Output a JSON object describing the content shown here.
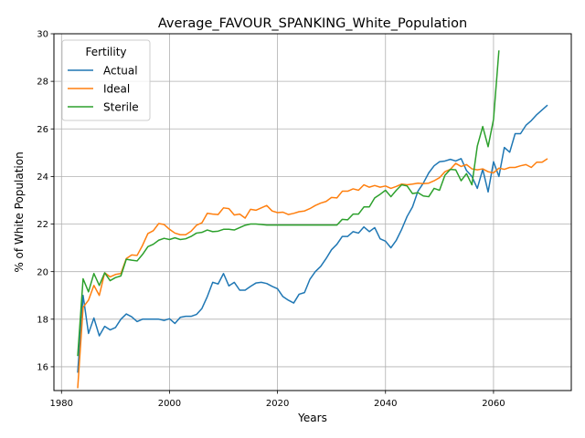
{
  "chart_data": {
    "type": "line",
    "title": "Average_FAVOUR_SPANKING_White_Population",
    "xlabel": "Years",
    "ylabel": "% of White Population",
    "xlim": [
      1978.6,
      2074.4
    ],
    "ylim": [
      15.0,
      30.0
    ],
    "xticks": [
      1980,
      2000,
      2020,
      2040,
      2060
    ],
    "yticks": [
      16,
      18,
      20,
      22,
      24,
      26,
      28,
      30
    ],
    "grid": true,
    "legend": {
      "title": "Fertility",
      "position": "upper-left"
    },
    "series": [
      {
        "name": "Actual",
        "color": "#1f77b4",
        "x": [
          1983,
          1984,
          1985,
          1986,
          1987,
          1988,
          1989,
          1990,
          1991,
          1992,
          1993,
          1994,
          1995,
          1996,
          1997,
          1998,
          1999,
          2000,
          2001,
          2002,
          2003,
          2004,
          2005,
          2006,
          2007,
          2008,
          2009,
          2010,
          2011,
          2012,
          2013,
          2014,
          2015,
          2016,
          2017,
          2018,
          2019,
          2020,
          2021,
          2022,
          2023,
          2024,
          2025,
          2026,
          2027,
          2028,
          2029,
          2030,
          2031,
          2032,
          2033,
          2034,
          2035,
          2036,
          2037,
          2038,
          2039,
          2040,
          2041,
          2042,
          2043,
          2044,
          2045,
          2046,
          2047,
          2048,
          2049,
          2050,
          2051,
          2052,
          2053,
          2054,
          2055,
          2056,
          2057,
          2058,
          2059,
          2060,
          2061,
          2062,
          2063,
          2064,
          2065,
          2066,
          2067,
          2068,
          2069,
          2070
        ],
        "y": [
          15.75,
          19.0,
          17.4,
          18.05,
          17.3,
          17.7,
          17.55,
          17.65,
          18.0,
          18.22,
          18.1,
          17.9,
          18.0,
          18.0,
          18.0,
          18.0,
          17.95,
          18.02,
          17.82,
          18.08,
          18.12,
          18.12,
          18.2,
          18.45,
          18.95,
          19.55,
          19.48,
          19.92,
          19.4,
          19.55,
          19.22,
          19.22,
          19.38,
          19.52,
          19.55,
          19.5,
          19.38,
          19.28,
          18.95,
          18.8,
          18.68,
          19.05,
          19.12,
          19.68,
          20.0,
          20.22,
          20.55,
          20.92,
          21.15,
          21.48,
          21.48,
          21.68,
          21.62,
          21.88,
          21.68,
          21.85,
          21.38,
          21.28,
          21.0,
          21.32,
          21.78,
          22.32,
          22.72,
          23.38,
          23.72,
          24.15,
          24.45,
          24.62,
          24.65,
          24.72,
          24.65,
          24.75,
          24.25,
          24.0,
          23.5,
          24.3,
          23.35,
          24.62,
          24.0,
          25.22,
          25.02,
          25.8,
          25.8,
          26.15,
          26.35,
          26.6,
          26.8,
          27.0
        ]
      },
      {
        "name": "Ideal",
        "color": "#ff7f0e",
        "x": [
          1983,
          1984,
          1985,
          1986,
          1987,
          1988,
          1989,
          1990,
          1991,
          1992,
          1993,
          1994,
          1995,
          1996,
          1997,
          1998,
          1999,
          2000,
          2001,
          2002,
          2003,
          2004,
          2005,
          2006,
          2007,
          2008,
          2009,
          2010,
          2011,
          2012,
          2013,
          2014,
          2015,
          2016,
          2017,
          2018,
          2019,
          2020,
          2021,
          2022,
          2023,
          2024,
          2025,
          2026,
          2027,
          2028,
          2029,
          2030,
          2031,
          2032,
          2033,
          2034,
          2035,
          2036,
          2037,
          2038,
          2039,
          2040,
          2041,
          2042,
          2043,
          2044,
          2045,
          2046,
          2047,
          2048,
          2049,
          2050,
          2051,
          2052,
          2053,
          2054,
          2055,
          2056,
          2057,
          2058,
          2059,
          2060,
          2061,
          2062,
          2063,
          2064,
          2065,
          2066,
          2067,
          2068,
          2069,
          2070
        ],
        "y": [
          15.1,
          18.5,
          18.8,
          19.42,
          19.0,
          19.95,
          19.78,
          19.88,
          19.92,
          20.55,
          20.7,
          20.68,
          21.1,
          21.6,
          21.72,
          22.02,
          21.98,
          21.78,
          21.62,
          21.55,
          21.55,
          21.7,
          21.95,
          22.05,
          22.45,
          22.42,
          22.4,
          22.68,
          22.65,
          22.38,
          22.42,
          22.25,
          22.62,
          22.58,
          22.68,
          22.78,
          22.55,
          22.48,
          22.5,
          22.4,
          22.45,
          22.52,
          22.55,
          22.65,
          22.78,
          22.88,
          22.95,
          23.12,
          23.1,
          23.38,
          23.38,
          23.48,
          23.42,
          23.65,
          23.55,
          23.62,
          23.55,
          23.6,
          23.5,
          23.58,
          23.68,
          23.65,
          23.68,
          23.72,
          23.7,
          23.72,
          23.82,
          23.95,
          24.2,
          24.3,
          24.55,
          24.42,
          24.5,
          24.32,
          24.28,
          24.32,
          24.2,
          24.15,
          24.35,
          24.3,
          24.38,
          24.38,
          24.45,
          24.5,
          24.38,
          24.6,
          24.6,
          24.75
        ]
      },
      {
        "name": "Sterile",
        "color": "#2ca02c",
        "x": [
          1983,
          1984,
          1985,
          1986,
          1987,
          1988,
          1989,
          1990,
          1991,
          1992,
          1993,
          1994,
          1995,
          1996,
          1997,
          1998,
          1999,
          2000,
          2001,
          2002,
          2003,
          2004,
          2005,
          2006,
          2007,
          2008,
          2009,
          2010,
          2011,
          2012,
          2013,
          2014,
          2015,
          2016,
          2017,
          2018,
          2019,
          2020,
          2021,
          2022,
          2023,
          2024,
          2025,
          2026,
          2027,
          2028,
          2029,
          2030,
          2031,
          2032,
          2033,
          2034,
          2035,
          2036,
          2037,
          2038,
          2039,
          2040,
          2041,
          2042,
          2043,
          2044,
          2045,
          2046,
          2047,
          2048,
          2049,
          2050,
          2051,
          2052,
          2053,
          2054,
          2055,
          2056,
          2057,
          2058,
          2059,
          2060,
          2061
        ],
        "y": [
          16.45,
          19.7,
          19.15,
          19.92,
          19.42,
          19.95,
          19.62,
          19.75,
          19.82,
          20.52,
          20.48,
          20.45,
          20.72,
          21.05,
          21.15,
          21.32,
          21.4,
          21.35,
          21.42,
          21.35,
          21.38,
          21.48,
          21.62,
          21.65,
          21.75,
          21.68,
          21.7,
          21.78,
          21.78,
          21.75,
          21.85,
          21.95,
          22.0,
          22.0,
          21.98,
          21.96,
          21.96,
          21.96,
          21.96,
          21.96,
          21.96,
          21.96,
          21.96,
          21.96,
          21.96,
          21.96,
          21.96,
          21.96,
          21.96,
          22.2,
          22.18,
          22.42,
          22.42,
          22.72,
          22.72,
          23.1,
          23.25,
          23.42,
          23.15,
          23.42,
          23.65,
          23.6,
          23.28,
          23.32,
          23.18,
          23.15,
          23.5,
          23.42,
          24.05,
          24.3,
          24.28,
          23.82,
          24.12,
          23.65,
          25.28,
          26.1,
          25.25,
          26.4,
          29.3
        ]
      }
    ]
  }
}
